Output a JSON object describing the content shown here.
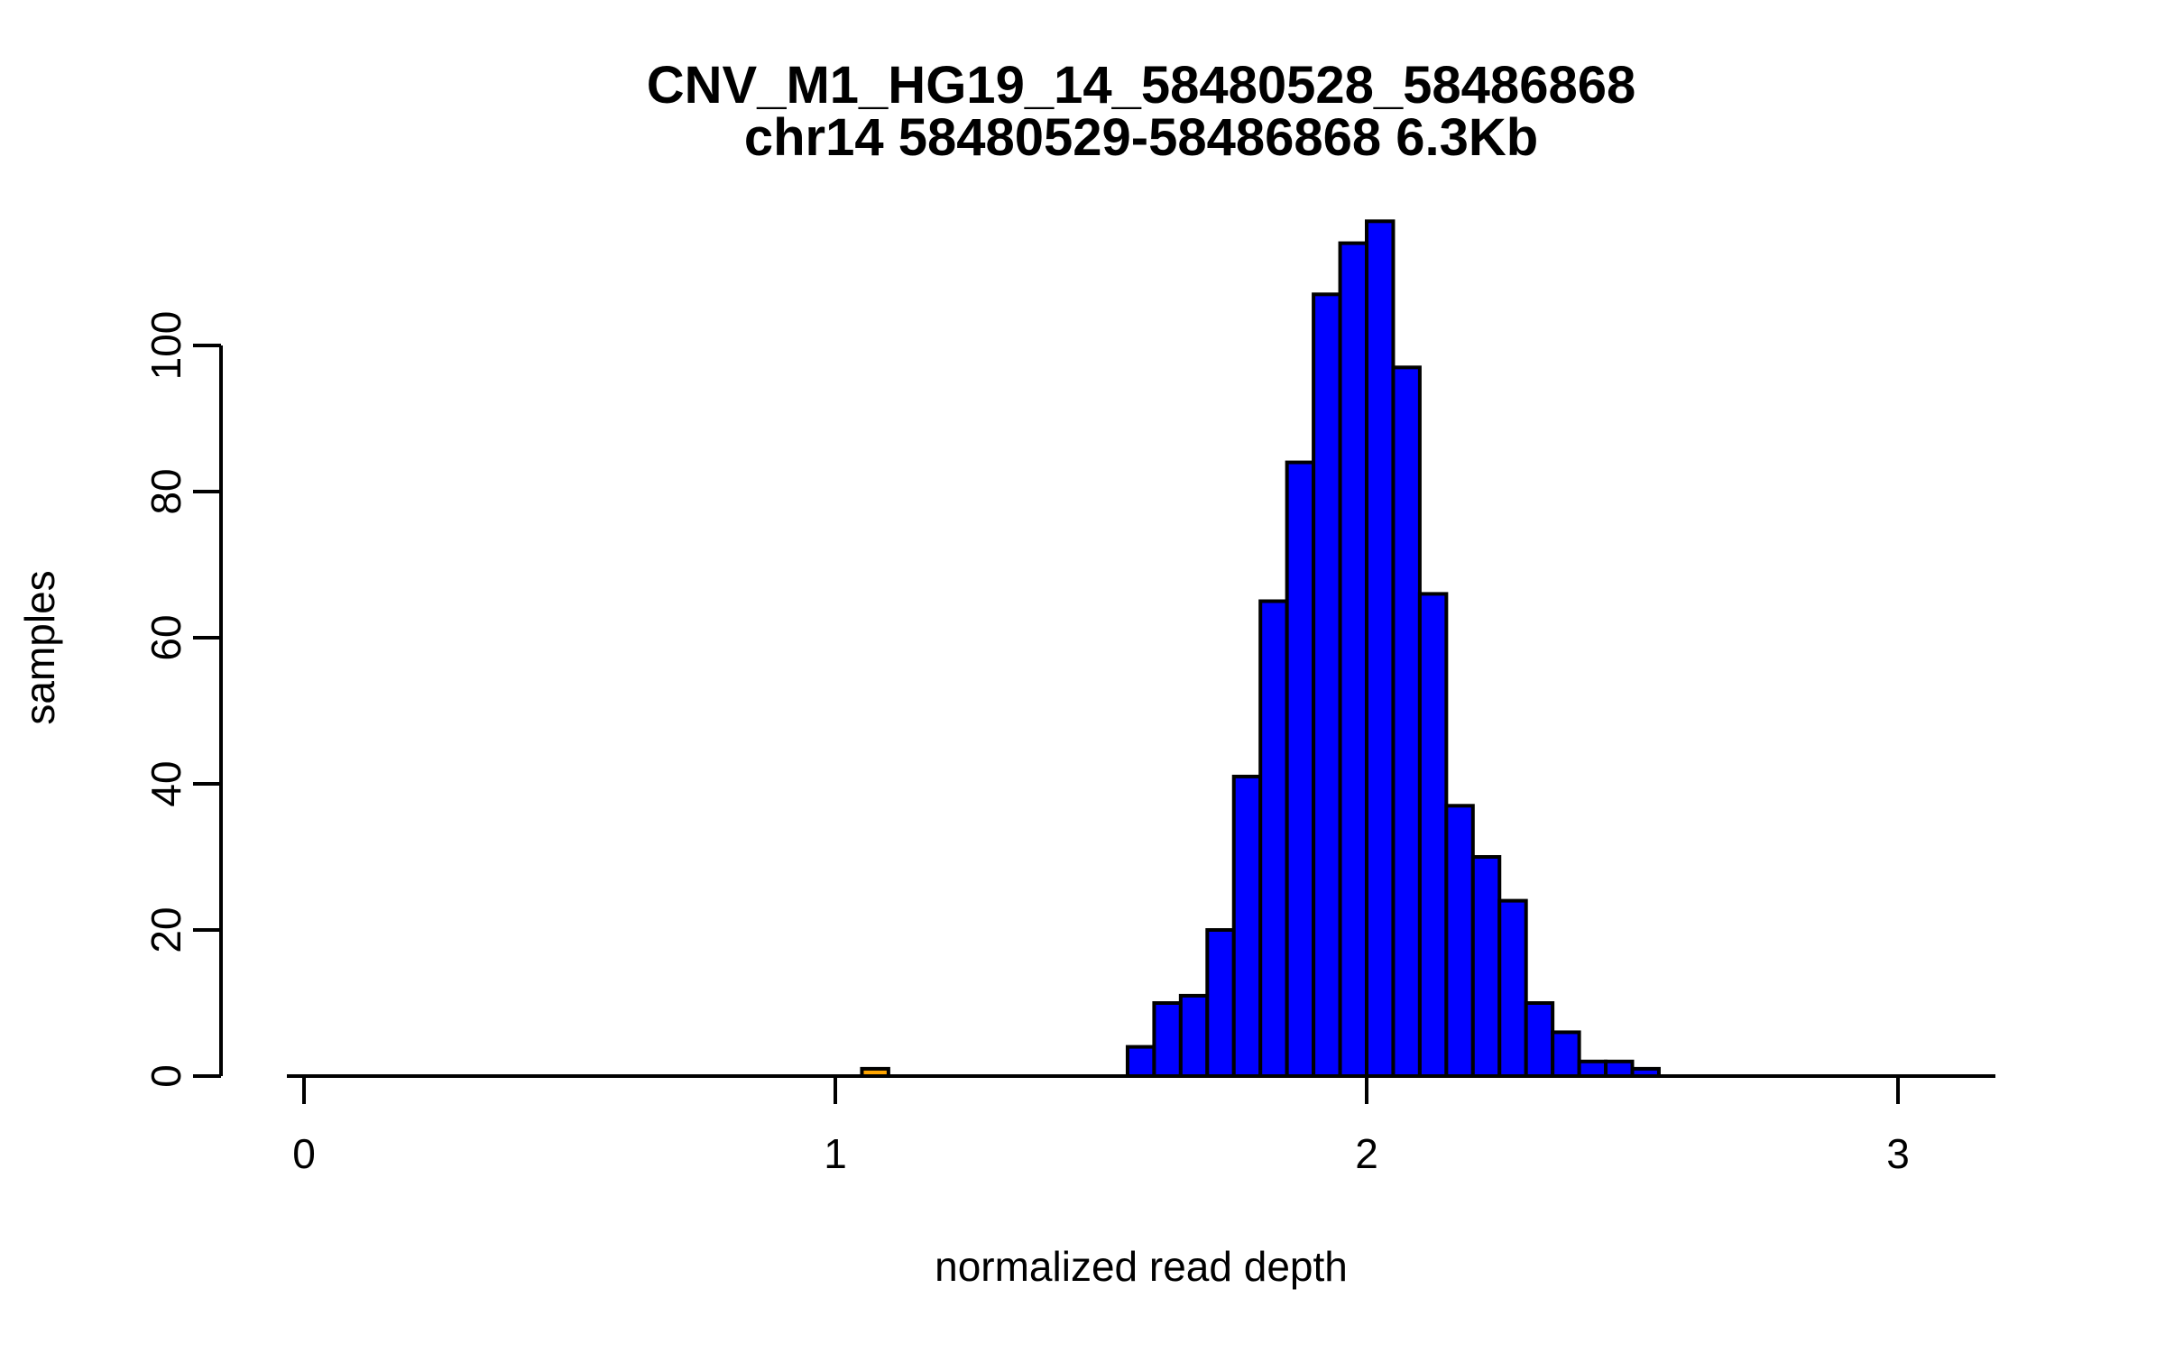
{
  "chart_data": {
    "type": "bar",
    "subtype": "histogram",
    "title": "CNV_M1_HG19_14_58480528_58486868",
    "subtitle": "chr14 58480529-58486868 6.3Kb",
    "xlabel": "normalized read depth",
    "ylabel": "samples",
    "x_ticks": [
      0,
      1,
      2,
      3
    ],
    "y_ticks": [
      0,
      20,
      40,
      60,
      80,
      100
    ],
    "xlim": [
      -0.03,
      3.18
    ],
    "ylim": [
      0,
      117
    ],
    "bin_width": 0.05,
    "grid": false,
    "legend": false,
    "colors": {
      "bar_fill": "#0000FF",
      "outlier_fill": "#FFA500",
      "border": "#000000",
      "background": "#FFFFFF",
      "text": "#000000"
    },
    "bars": [
      {
        "x0": 1.05,
        "x1": 1.1,
        "count": 1,
        "color": "#FFA500"
      },
      {
        "x0": 1.55,
        "x1": 1.6,
        "count": 4,
        "color": "#0000FF"
      },
      {
        "x0": 1.6,
        "x1": 1.65,
        "count": 10,
        "color": "#0000FF"
      },
      {
        "x0": 1.65,
        "x1": 1.7,
        "count": 11,
        "color": "#0000FF"
      },
      {
        "x0": 1.7,
        "x1": 1.75,
        "count": 20,
        "color": "#0000FF"
      },
      {
        "x0": 1.75,
        "x1": 1.8,
        "count": 41,
        "color": "#0000FF"
      },
      {
        "x0": 1.8,
        "x1": 1.85,
        "count": 65,
        "color": "#0000FF"
      },
      {
        "x0": 1.85,
        "x1": 1.9,
        "count": 84,
        "color": "#0000FF"
      },
      {
        "x0": 1.9,
        "x1": 1.95,
        "count": 107,
        "color": "#0000FF"
      },
      {
        "x0": 1.95,
        "x1": 2.0,
        "count": 114,
        "color": "#0000FF"
      },
      {
        "x0": 2.0,
        "x1": 2.05,
        "count": 117,
        "color": "#0000FF"
      },
      {
        "x0": 2.05,
        "x1": 2.1,
        "count": 97,
        "color": "#0000FF"
      },
      {
        "x0": 2.1,
        "x1": 2.15,
        "count": 66,
        "color": "#0000FF"
      },
      {
        "x0": 2.15,
        "x1": 2.2,
        "count": 37,
        "color": "#0000FF"
      },
      {
        "x0": 2.2,
        "x1": 2.25,
        "count": 30,
        "color": "#0000FF"
      },
      {
        "x0": 2.25,
        "x1": 2.3,
        "count": 24,
        "color": "#0000FF"
      },
      {
        "x0": 2.3,
        "x1": 2.35,
        "count": 10,
        "color": "#0000FF"
      },
      {
        "x0": 2.35,
        "x1": 2.4,
        "count": 6,
        "color": "#0000FF"
      },
      {
        "x0": 2.4,
        "x1": 2.45,
        "count": 2,
        "color": "#0000FF"
      },
      {
        "x0": 2.45,
        "x1": 2.5,
        "count": 2,
        "color": "#0000FF"
      },
      {
        "x0": 2.5,
        "x1": 2.55,
        "count": 1,
        "color": "#0000FF"
      }
    ]
  }
}
